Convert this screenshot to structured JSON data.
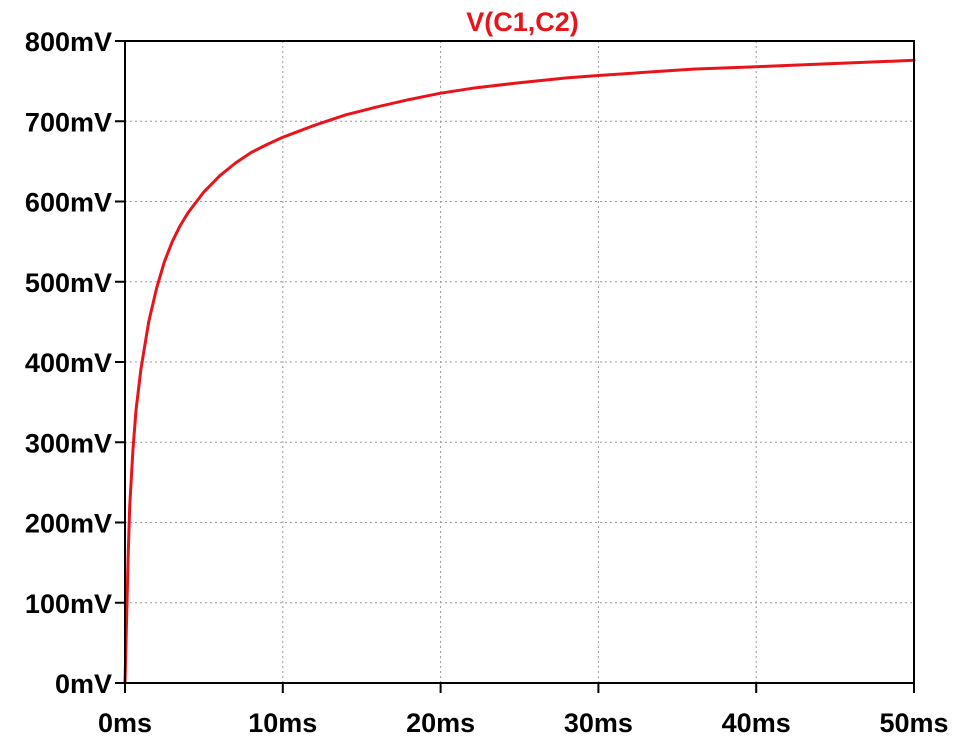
{
  "chart_data": {
    "type": "line",
    "title": "V(C1,C2)",
    "xlabel": "",
    "ylabel": "",
    "xlim": [
      0,
      50
    ],
    "ylim": [
      0,
      800
    ],
    "x_ticks": [
      "0ms",
      "10ms",
      "20ms",
      "30ms",
      "40ms",
      "50ms"
    ],
    "y_ticks": [
      "0mV",
      "100mV",
      "200mV",
      "300mV",
      "400mV",
      "500mV",
      "600mV",
      "700mV",
      "800mV"
    ],
    "grid": true,
    "colors": {
      "series": "#e8141b",
      "axes": "#000000",
      "grid": "#999999"
    },
    "series": [
      {
        "name": "V(C1,C2)",
        "x": [
          0,
          0.1,
          0.2,
          0.3,
          0.5,
          0.7,
          1,
          1.5,
          2,
          2.5,
          3,
          3.5,
          4,
          5,
          6,
          7,
          8,
          9,
          10,
          12,
          14,
          16,
          18,
          20,
          22,
          25,
          28,
          30,
          33,
          36,
          40,
          45,
          50
        ],
        "y": [
          0,
          80,
          160,
          220,
          290,
          340,
          390,
          450,
          492,
          525,
          550,
          570,
          586,
          612,
          632,
          648,
          661,
          671,
          680,
          695,
          708,
          718,
          727,
          735,
          741,
          748,
          754,
          757,
          761,
          765,
          768,
          772,
          776
        ]
      }
    ]
  }
}
